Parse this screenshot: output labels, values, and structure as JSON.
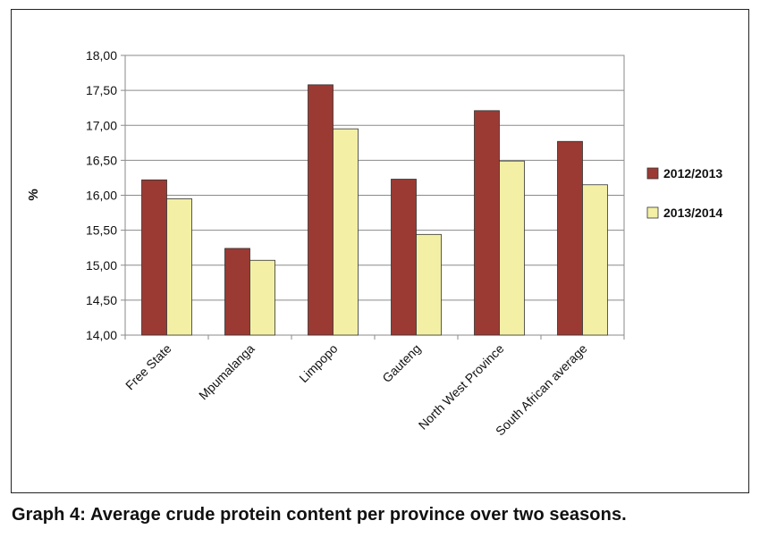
{
  "caption": "Graph 4: Average crude protein content per province over two seasons.",
  "chart_data": {
    "type": "bar",
    "ylabel": "%",
    "ylim": [
      14.0,
      18.0
    ],
    "yticks": [
      "14,00",
      "14,50",
      "15,00",
      "15,50",
      "16,00",
      "16,50",
      "17,00",
      "17,50",
      "18,00"
    ],
    "ytick_values": [
      14.0,
      14.5,
      15.0,
      15.5,
      16.0,
      16.5,
      17.0,
      17.5,
      18.0
    ],
    "categories": [
      "Free State",
      "Mpumalanga",
      "Limpopo",
      "Gauteng",
      "North West Province",
      "South African average"
    ],
    "series": [
      {
        "name": "2012/2013",
        "color": "#9b3a33",
        "values": [
          16.22,
          15.24,
          17.58,
          16.23,
          17.21,
          16.77
        ]
      },
      {
        "name": "2013/2014",
        "color": "#f3f0a6",
        "values": [
          15.95,
          15.07,
          16.95,
          15.44,
          16.49,
          16.15
        ]
      }
    ],
    "grid": true,
    "legend_position": "right"
  }
}
